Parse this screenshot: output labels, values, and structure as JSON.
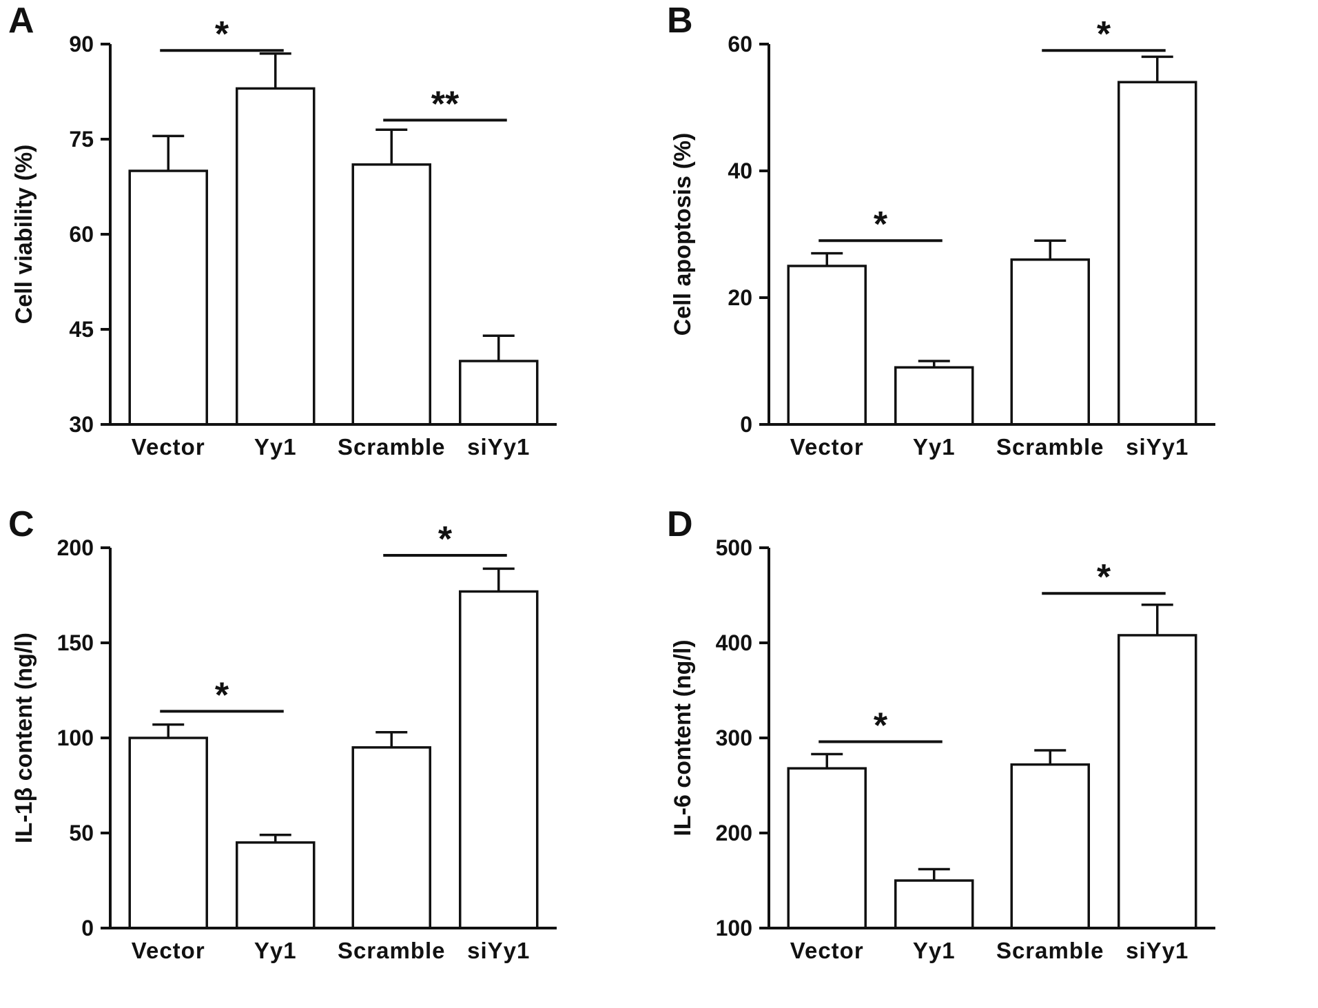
{
  "figure": {
    "background": "#ffffff",
    "bar_fill": "#ffffff",
    "line_color": "#111111"
  },
  "chart_data": [
    {
      "type": "bar",
      "panel": "A",
      "ylabel": "Cell viability (%)",
      "categories": [
        "Vector",
        "Yy1",
        "Scramble",
        "siYy1"
      ],
      "values": [
        70,
        83,
        71,
        40
      ],
      "errors": [
        5.5,
        5.5,
        5.5,
        4
      ],
      "ylim": [
        30,
        90
      ],
      "yticks": [
        30,
        45,
        60,
        75,
        90
      ],
      "grid": false,
      "legend": "none",
      "significance": [
        {
          "from": 0,
          "to": 1,
          "label": "*",
          "y": 89
        },
        {
          "from": 2,
          "to": 3,
          "label": "**",
          "y": 78
        }
      ]
    },
    {
      "type": "bar",
      "panel": "B",
      "ylabel": "Cell apoptosis (%)",
      "categories": [
        "Vector",
        "Yy1",
        "Scramble",
        "siYy1"
      ],
      "values": [
        25,
        9,
        26,
        54
      ],
      "errors": [
        2,
        1,
        3,
        4
      ],
      "ylim": [
        0,
        60
      ],
      "yticks": [
        0,
        20,
        40,
        60
      ],
      "grid": false,
      "legend": "none",
      "significance": [
        {
          "from": 0,
          "to": 1,
          "label": "*",
          "y": 29
        },
        {
          "from": 2,
          "to": 3,
          "label": "*",
          "y": 59
        }
      ]
    },
    {
      "type": "bar",
      "panel": "C",
      "ylabel": "IL-1β content (ng/l)",
      "categories": [
        "Vector",
        "Yy1",
        "Scramble",
        "siYy1"
      ],
      "values": [
        100,
        45,
        95,
        177
      ],
      "errors": [
        7,
        4,
        8,
        12
      ],
      "ylim": [
        0,
        200
      ],
      "yticks": [
        0,
        50,
        100,
        150,
        200
      ],
      "grid": false,
      "legend": "none",
      "significance": [
        {
          "from": 0,
          "to": 1,
          "label": "*",
          "y": 114
        },
        {
          "from": 2,
          "to": 3,
          "label": "*",
          "y": 196
        }
      ]
    },
    {
      "type": "bar",
      "panel": "D",
      "ylabel": "IL-6 content (ng/l)",
      "categories": [
        "Vector",
        "Yy1",
        "Scramble",
        "siYy1"
      ],
      "values": [
        268,
        150,
        272,
        408
      ],
      "errors": [
        15,
        12,
        15,
        32
      ],
      "ylim": [
        100,
        500
      ],
      "yticks": [
        100,
        200,
        300,
        400,
        500
      ],
      "grid": false,
      "legend": "none",
      "significance": [
        {
          "from": 0,
          "to": 1,
          "label": "*",
          "y": 296
        },
        {
          "from": 2,
          "to": 3,
          "label": "*",
          "y": 452
        }
      ]
    }
  ]
}
